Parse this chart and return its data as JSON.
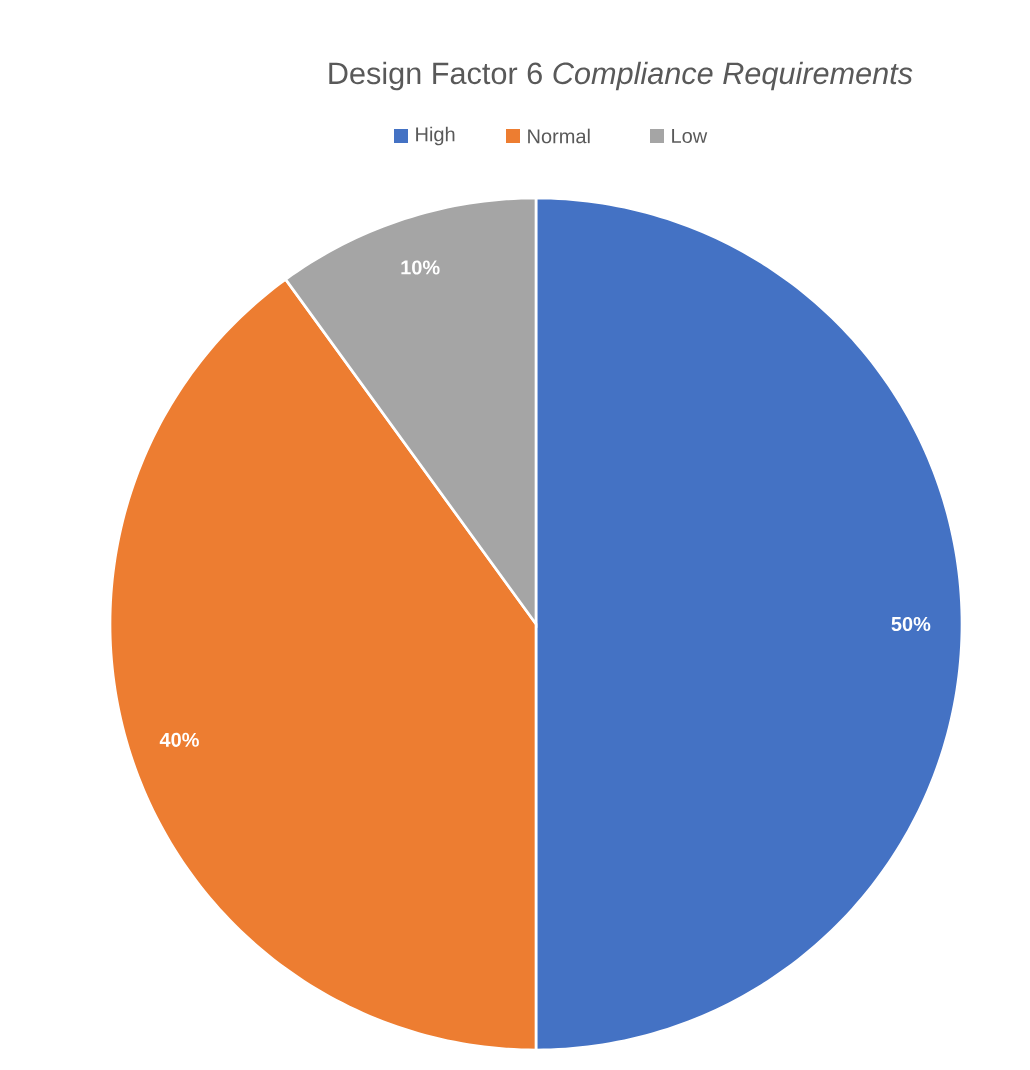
{
  "chart_data": {
    "type": "pie",
    "title": "Design Factor 6 *Compliance Requirements*",
    "categories": [
      "High",
      "Normal",
      "Low"
    ],
    "values": [
      50,
      40,
      10
    ],
    "colors": [
      "#4472c4",
      "#ed7d31",
      "#a5a5a5"
    ],
    "value_labels": [
      "50%",
      "40%",
      "10%"
    ],
    "legend": "top"
  }
}
